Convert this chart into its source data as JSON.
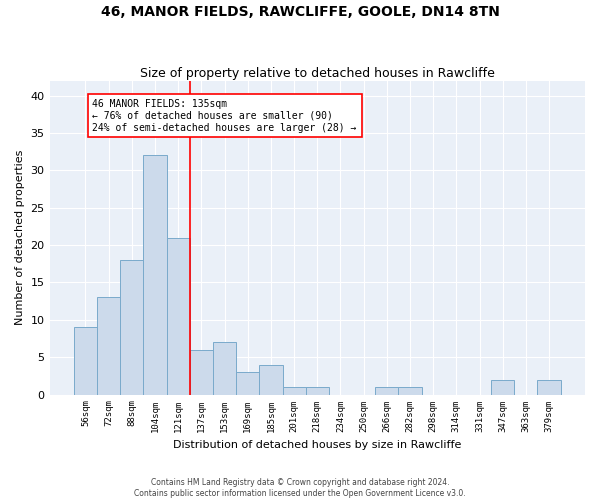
{
  "title": "46, MANOR FIELDS, RAWCLIFFE, GOOLE, DN14 8TN",
  "subtitle": "Size of property relative to detached houses in Rawcliffe",
  "xlabel": "Distribution of detached houses by size in Rawcliffe",
  "ylabel": "Number of detached properties",
  "bar_color": "#ccdaeb",
  "bar_edge_color": "#7aaacb",
  "bg_color": "#eaf0f8",
  "categories": [
    "56sqm",
    "72sqm",
    "88sqm",
    "104sqm",
    "121sqm",
    "137sqm",
    "153sqm",
    "169sqm",
    "185sqm",
    "201sqm",
    "218sqm",
    "234sqm",
    "250sqm",
    "266sqm",
    "282sqm",
    "298sqm",
    "314sqm",
    "331sqm",
    "347sqm",
    "363sqm",
    "379sqm"
  ],
  "values": [
    9,
    13,
    18,
    32,
    21,
    6,
    7,
    3,
    4,
    1,
    1,
    0,
    0,
    1,
    1,
    0,
    0,
    0,
    2,
    0,
    2
  ],
  "ylim": [
    0,
    42
  ],
  "yticks": [
    0,
    5,
    10,
    15,
    20,
    25,
    30,
    35,
    40
  ],
  "vline_x": 4.5,
  "annotation_line1": "46 MANOR FIELDS: 135sqm",
  "annotation_line2": "← 76% of detached houses are smaller (90)",
  "annotation_line3": "24% of semi-detached houses are larger (28) →",
  "footer_line1": "Contains HM Land Registry data © Crown copyright and database right 2024.",
  "footer_line2": "Contains public sector information licensed under the Open Government Licence v3.0.",
  "title_fontsize": 10,
  "subtitle_fontsize": 9,
  "xlabel_fontsize": 8,
  "ylabel_fontsize": 8
}
